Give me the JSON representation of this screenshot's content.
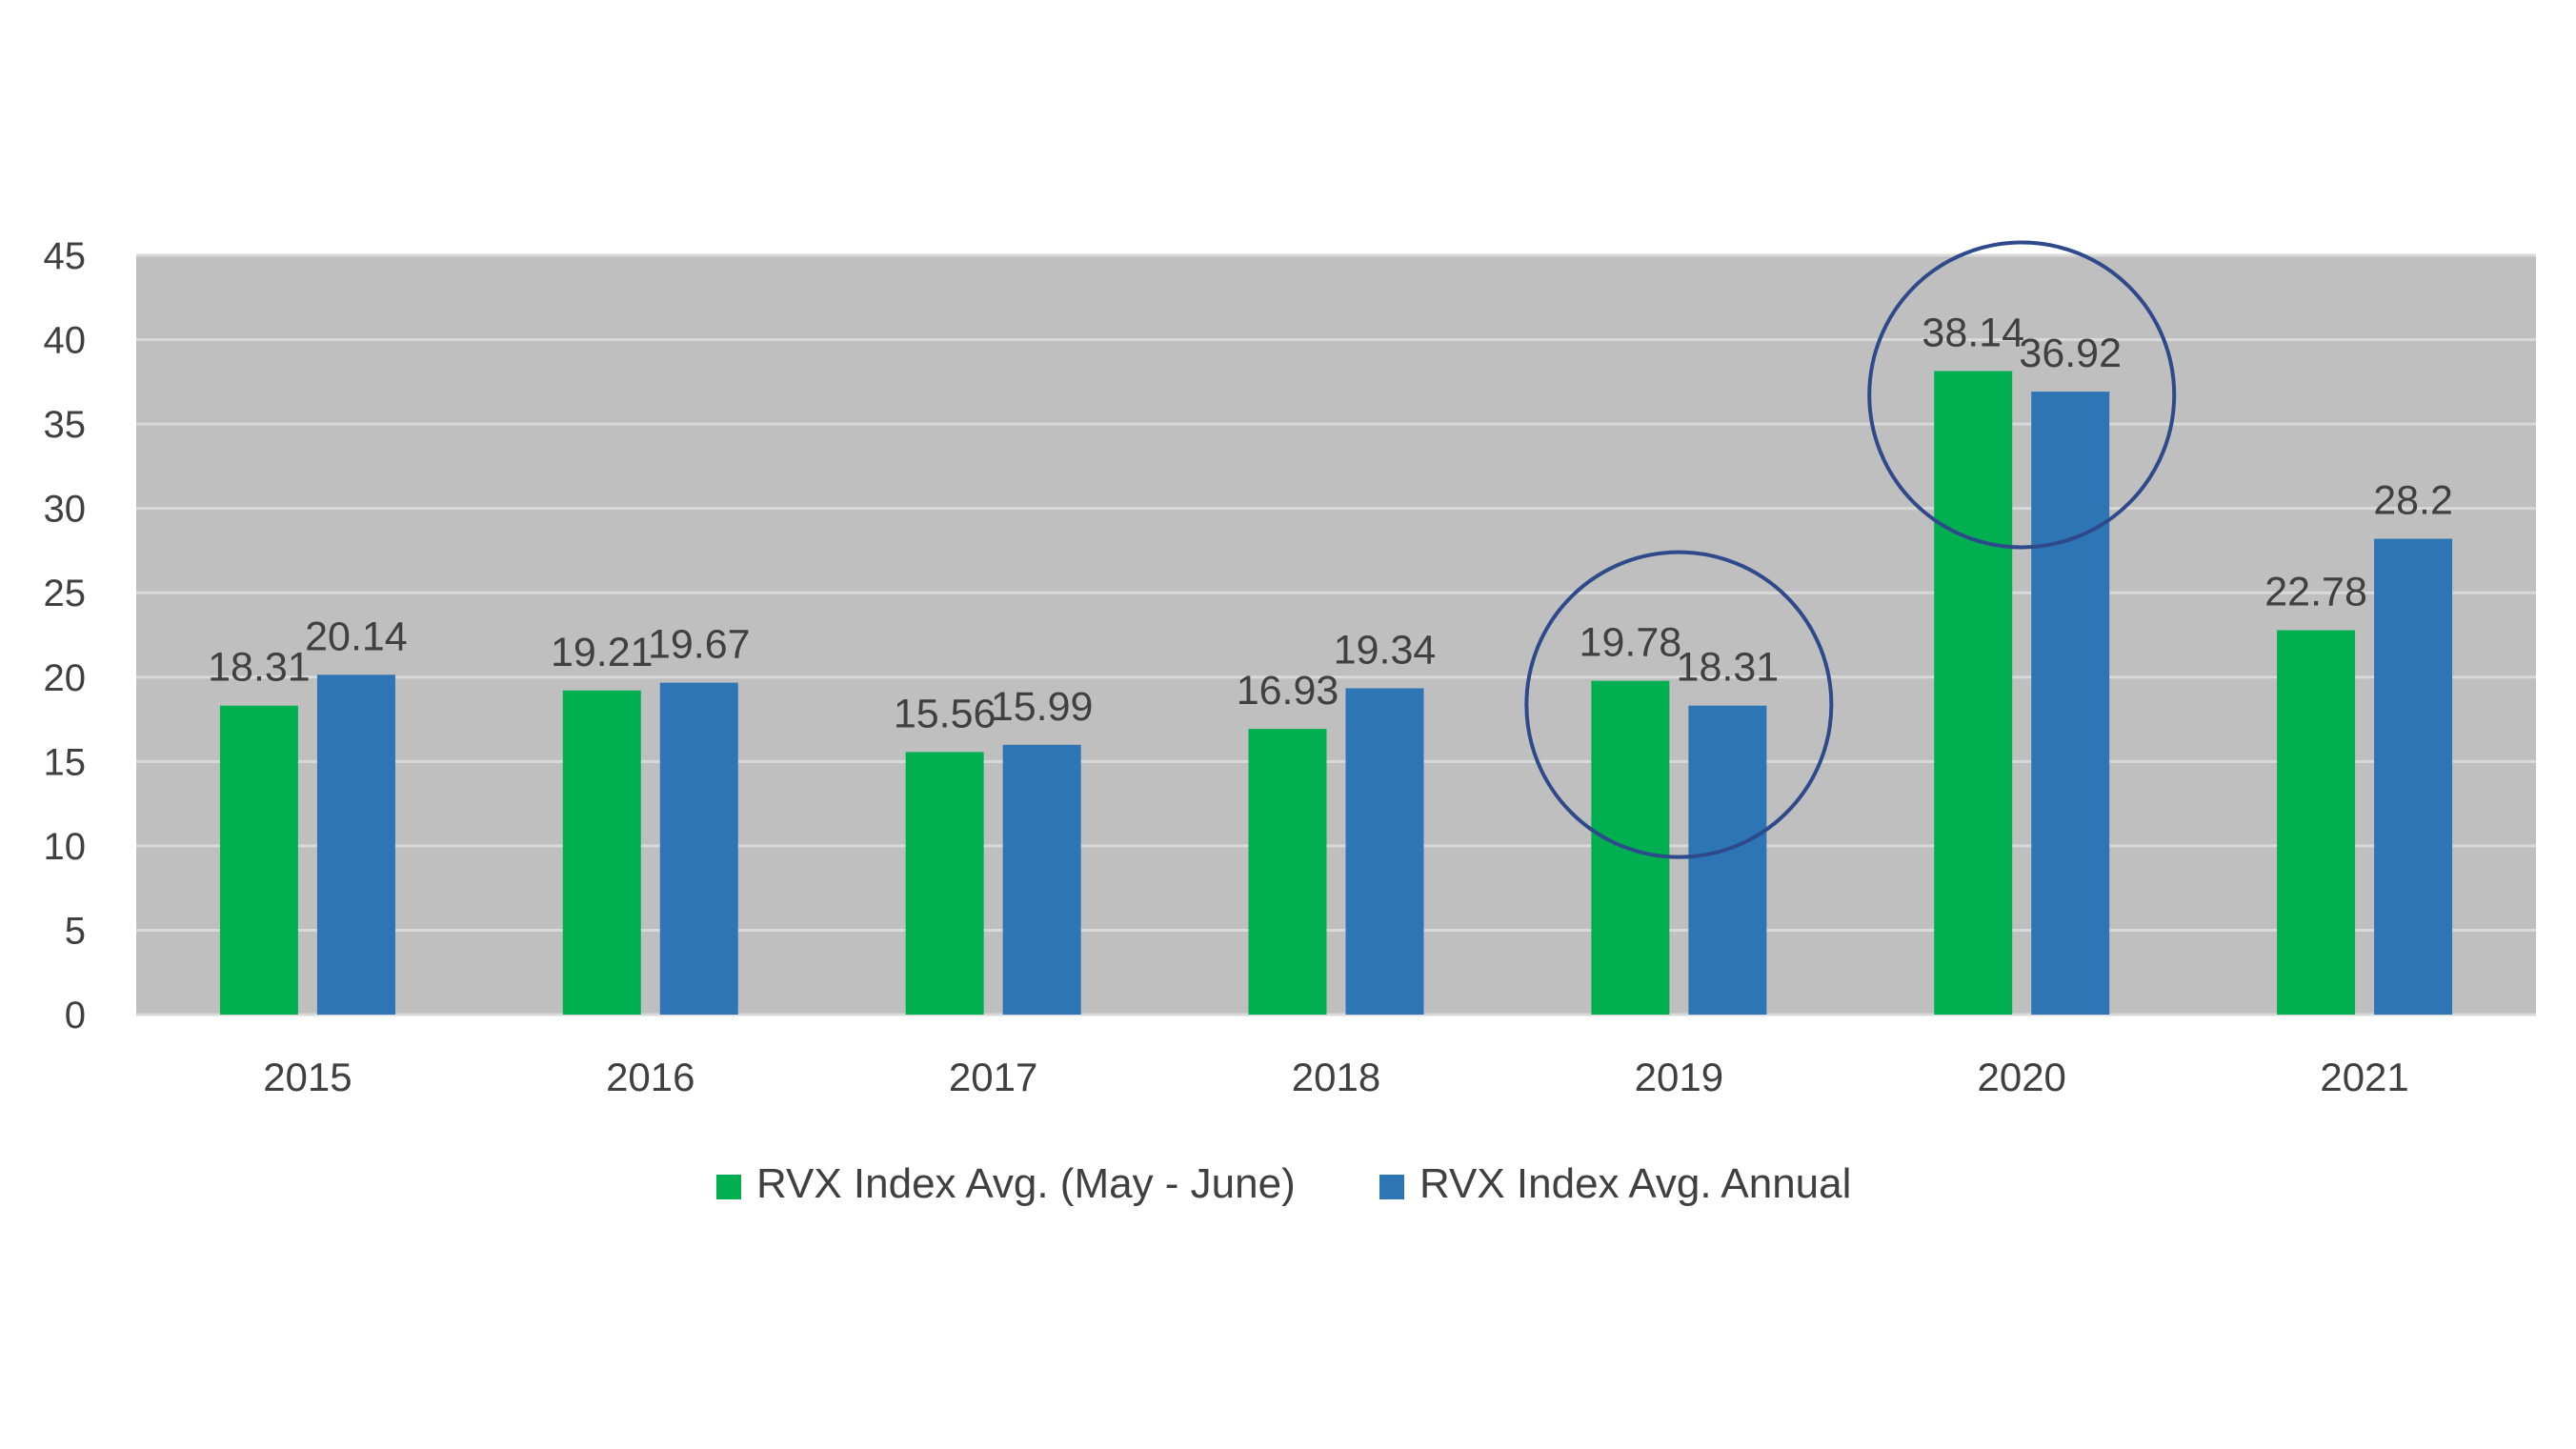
{
  "chart_data": {
    "type": "bar",
    "categories": [
      "2015",
      "2016",
      "2017",
      "2018",
      "2019",
      "2020",
      "2021"
    ],
    "series": [
      {
        "name": "RVX Index Avg. (May - June)",
        "values": [
          18.31,
          19.21,
          15.56,
          16.93,
          19.78,
          38.14,
          22.78
        ],
        "labels": [
          "18.31",
          "19.21",
          "15.56",
          "16.93",
          "19.78",
          "38.14",
          "22.78"
        ],
        "color": "#00b050"
      },
      {
        "name": "RVX Index Avg. Annual",
        "values": [
          20.14,
          19.67,
          15.99,
          19.34,
          18.31,
          36.92,
          28.2
        ],
        "labels": [
          "20.14",
          "19.67",
          "15.99",
          "19.34",
          "18.31",
          "36.92",
          "28.2"
        ],
        "color": "#2e75b6"
      }
    ],
    "yticks": [
      "0",
      "5",
      "10",
      "15",
      "20",
      "25",
      "30",
      "35",
      "40",
      "45"
    ],
    "ylim": [
      0,
      45
    ],
    "grid": true,
    "plot_background": "#bfbfbf",
    "gridline_color": "#d9d9d9",
    "legend_position": "bottom",
    "highlighted_categories": [
      "2019",
      "2020"
    ],
    "highlight_color": "#2f4a8a"
  }
}
